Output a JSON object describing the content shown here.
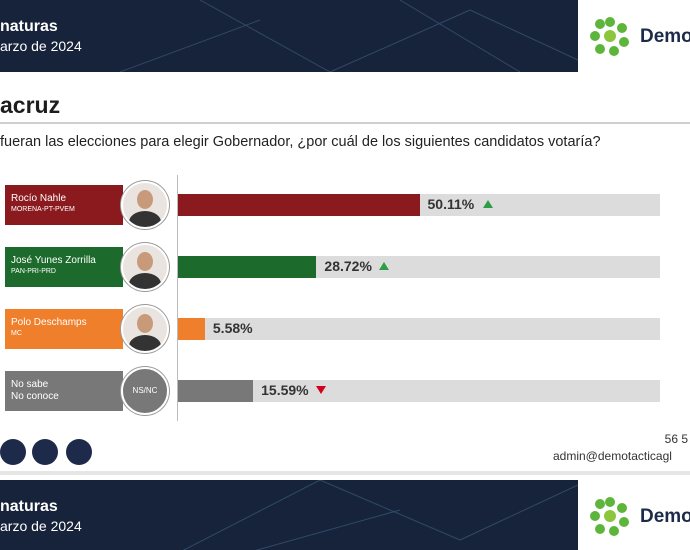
{
  "header": {
    "title": "naturas",
    "date": "arzo de 2024",
    "brand": "Demo"
  },
  "state": "acruz",
  "question": "fueran las elecciones para elegir Gobernador, ¿por cuál de los siguientes candidatos votaría?",
  "chart_data": {
    "type": "bar",
    "orientation": "horizontal",
    "categories": [
      "Rocío Nahle",
      "José Yunes Zorrilla",
      "Polo Deschamps",
      "No sabe\nNo conoce"
    ],
    "parties": [
      "MORENA-PT-PVEM",
      "PAN-PRI-PRD",
      "MC",
      null
    ],
    "avatar_labels": [
      null,
      null,
      null,
      "NS/NC"
    ],
    "values": [
      50.11,
      28.72,
      5.58,
      15.59
    ],
    "value_labels": [
      "50.11%",
      "28.72%",
      "5.58%",
      "15.59%"
    ],
    "trends": [
      "up",
      "up",
      null,
      "down"
    ],
    "colors": [
      "#8b1a1f",
      "#1c6b2c",
      "#ef7f2b",
      "#787878"
    ],
    "xlim": [
      0,
      100
    ]
  },
  "footer": {
    "phone": "56 5",
    "email": "admin@demotacticagl",
    "title": "naturas",
    "date": "arzo de 2024",
    "brand": "Demo"
  }
}
